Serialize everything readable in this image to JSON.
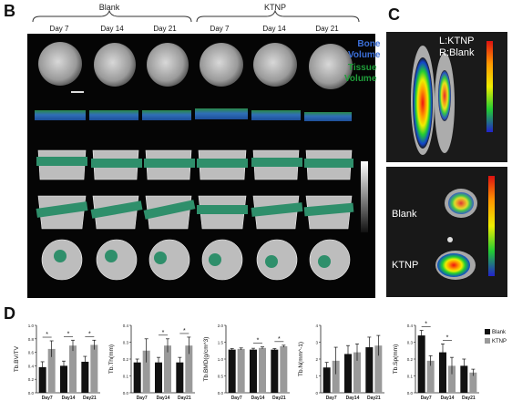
{
  "panel_letters": {
    "b": "B",
    "c": "C",
    "d": "D"
  },
  "groups": {
    "blank": "Blank",
    "ktnp": "KTNP"
  },
  "columns": [
    "Day 7",
    "Day 14",
    "Day 21",
    "Day 7",
    "Day 14",
    "Day 21"
  ],
  "legend_b": {
    "bone": "Bone",
    "volume1": "Volume",
    "tissue": "Tissue",
    "volume2": "Volume"
  },
  "panel_c": {
    "top_label1": "L:KTNP",
    "top_label2": "R:Blank",
    "bot_blank": "Blank",
    "bot_ktnp": "KTNP"
  },
  "colors": {
    "bone_blue": "#3b6fd8",
    "tissue_green": "#1f9e3a",
    "blank_bar": "#111111",
    "ktnp_bar": "#9a9a9a"
  },
  "chart_data": [
    {
      "type": "bar",
      "ylabel": "Tb.BV/TV",
      "categories": [
        "Day7",
        "Day14",
        "Day21"
      ],
      "ylim": [
        0,
        1.0
      ],
      "yticks": [
        "0.0",
        "0.2",
        "0.4",
        "0.6",
        "0.8",
        "1.0"
      ],
      "series": [
        {
          "name": "Blank",
          "values": [
            0.38,
            0.4,
            0.46
          ],
          "err": [
            0.08,
            0.07,
            0.08
          ]
        },
        {
          "name": "KTNP",
          "values": [
            0.65,
            0.7,
            0.71
          ],
          "err": [
            0.12,
            0.08,
            0.07
          ]
        }
      ],
      "sig": [
        "*",
        "*",
        "*"
      ]
    },
    {
      "type": "bar",
      "ylabel": "Tb.Th(mm)",
      "categories": [
        "Day7",
        "Day14",
        "Day21"
      ],
      "ylim": [
        0,
        0.4
      ],
      "yticks": [
        "0.0",
        "0.1",
        "0.2",
        "0.3",
        "0.4"
      ],
      "series": [
        {
          "name": "Blank",
          "values": [
            0.18,
            0.18,
            0.18
          ],
          "err": [
            0.02,
            0.03,
            0.03
          ]
        },
        {
          "name": "KTNP",
          "values": [
            0.25,
            0.28,
            0.28
          ],
          "err": [
            0.07,
            0.04,
            0.05
          ]
        }
      ],
      "sig": [
        "",
        "*",
        "*"
      ]
    },
    {
      "type": "bar",
      "ylabel": "Tb.BMD(g/cm^3)",
      "categories": [
        "Day7",
        "Day14",
        "Day21"
      ],
      "ylim": [
        0,
        2.0
      ],
      "yticks": [
        "0.0",
        "0.5",
        "1.0",
        "1.5",
        "2.0"
      ],
      "series": [
        {
          "name": "Blank",
          "values": [
            1.28,
            1.28,
            1.28
          ],
          "err": [
            0.03,
            0.04,
            0.03
          ]
        },
        {
          "name": "KTNP",
          "values": [
            1.3,
            1.33,
            1.38
          ],
          "err": [
            0.03,
            0.03,
            0.03
          ]
        }
      ],
      "sig": [
        "",
        "*",
        "*"
      ]
    },
    {
      "type": "bar",
      "ylabel": "Tb.N(mm^-1)",
      "categories": [
        "Day7",
        "Day14",
        "Day21"
      ],
      "ylim": [
        0,
        4
      ],
      "yticks": [
        "0",
        "1",
        "2",
        "3",
        "4"
      ],
      "series": [
        {
          "name": "Blank",
          "values": [
            1.5,
            2.3,
            2.7
          ],
          "err": [
            0.3,
            0.5,
            0.6
          ]
        },
        {
          "name": "KTNP",
          "values": [
            1.9,
            2.4,
            2.8
          ],
          "err": [
            0.8,
            0.5,
            0.6
          ]
        }
      ],
      "sig": [
        "",
        "",
        ""
      ]
    },
    {
      "type": "bar",
      "ylabel": "Tb.Sp(mm)",
      "categories": [
        "Day7",
        "Day14",
        "Day21"
      ],
      "ylim": [
        0,
        0.4
      ],
      "yticks": [
        "0.0",
        "0.1",
        "0.2",
        "0.3",
        "0.4"
      ],
      "series": [
        {
          "name": "Blank",
          "values": [
            0.34,
            0.24,
            0.16
          ],
          "err": [
            0.03,
            0.05,
            0.04
          ]
        },
        {
          "name": "KTNP",
          "values": [
            0.19,
            0.16,
            0.12
          ],
          "err": [
            0.03,
            0.05,
            0.02
          ]
        }
      ],
      "sig": [
        "*",
        "*",
        ""
      ],
      "legend": [
        "Blank",
        "KTNP"
      ]
    }
  ]
}
